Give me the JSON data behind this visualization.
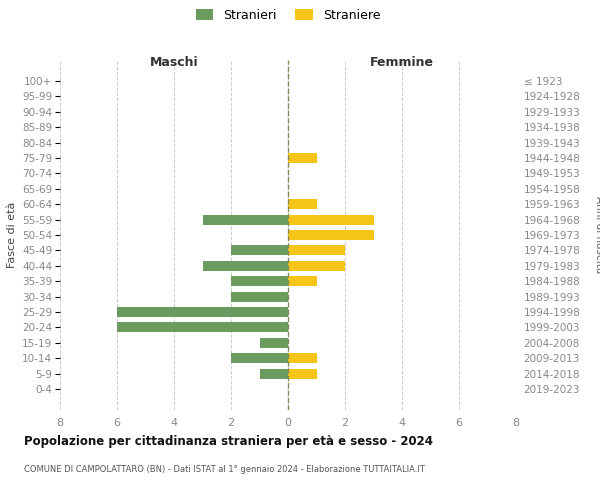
{
  "age_groups": [
    "100+",
    "95-99",
    "90-94",
    "85-89",
    "80-84",
    "75-79",
    "70-74",
    "65-69",
    "60-64",
    "55-59",
    "50-54",
    "45-49",
    "40-44",
    "35-39",
    "30-34",
    "25-29",
    "20-24",
    "15-19",
    "10-14",
    "5-9",
    "0-4"
  ],
  "birth_years": [
    "≤ 1923",
    "1924-1928",
    "1929-1933",
    "1934-1938",
    "1939-1943",
    "1944-1948",
    "1949-1953",
    "1954-1958",
    "1959-1963",
    "1964-1968",
    "1969-1973",
    "1974-1978",
    "1979-1983",
    "1984-1988",
    "1989-1993",
    "1994-1998",
    "1999-2003",
    "2004-2008",
    "2009-2013",
    "2014-2018",
    "2019-2023"
  ],
  "males": [
    0,
    0,
    0,
    0,
    0,
    0,
    0,
    0,
    0,
    3,
    0,
    2,
    3,
    2,
    2,
    6,
    6,
    1,
    2,
    1,
    0
  ],
  "females": [
    0,
    0,
    0,
    0,
    0,
    1,
    0,
    0,
    1,
    3,
    3,
    2,
    2,
    1,
    0,
    0,
    0,
    0,
    1,
    1,
    0
  ],
  "male_color": "#6B9B5E",
  "female_color": "#F5C518",
  "title": "Popolazione per cittadinanza straniera per età e sesso - 2024",
  "subtitle": "COMUNE DI CAMPOLATTARO (BN) - Dati ISTAT al 1° gennaio 2024 - Elaborazione TUTTAITALIA.IT",
  "xlabel_left": "Maschi",
  "xlabel_right": "Femmine",
  "ylabel": "Fasce di età",
  "ylabel_right": "Anni di nascita",
  "legend_males": "Stranieri",
  "legend_females": "Straniere",
  "xlim": 8,
  "background_color": "#ffffff",
  "grid_color": "#cccccc",
  "tick_color": "#888888"
}
